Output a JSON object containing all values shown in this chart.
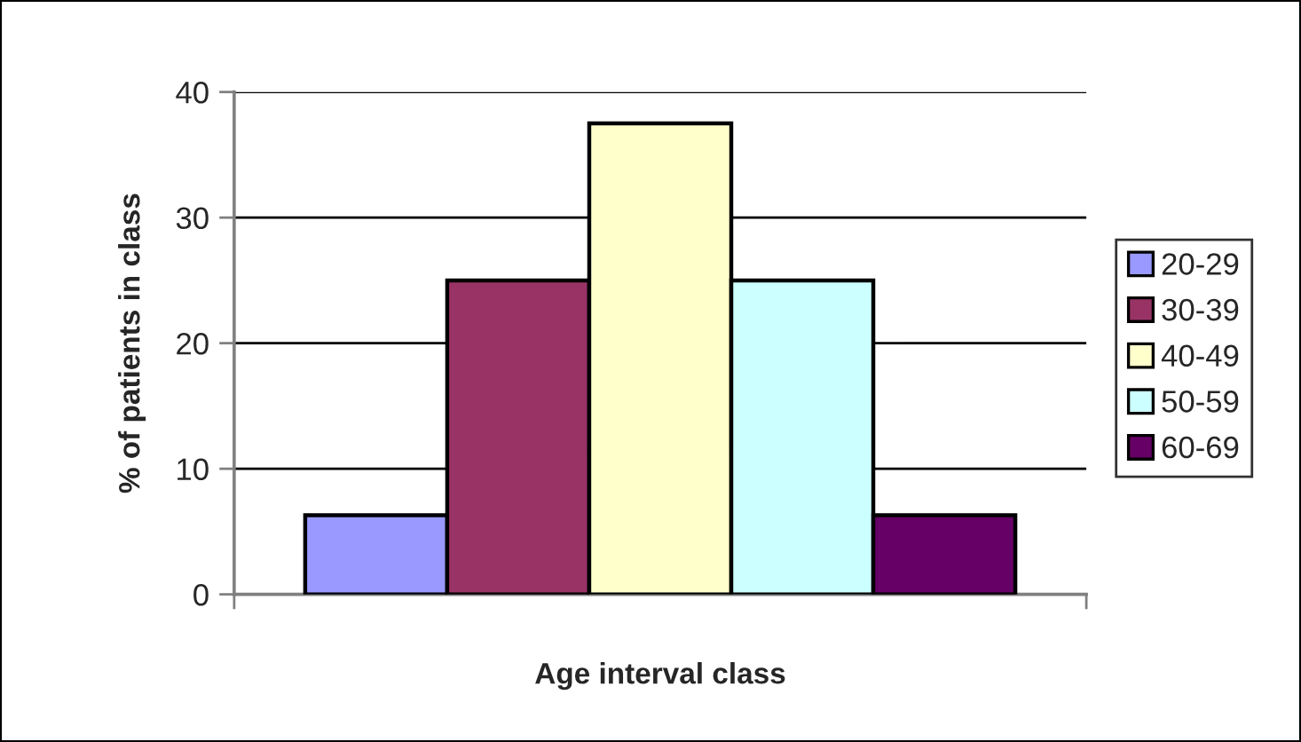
{
  "chart_data": {
    "type": "bar",
    "xlabel": "Age interval class",
    "ylabel": "% of patients in class",
    "categories": [
      null
    ],
    "series": [
      {
        "name": "20-29",
        "color": "#9999ff",
        "values": [
          6.3
        ]
      },
      {
        "name": "30-39",
        "color": "#993366",
        "values": [
          25
        ]
      },
      {
        "name": "40-49",
        "color": "#ffffcc",
        "values": [
          37.5
        ]
      },
      {
        "name": "50-59",
        "color": "#ccffff",
        "values": [
          25
        ]
      },
      {
        "name": "60-69",
        "color": "#660066",
        "values": [
          6.3
        ]
      }
    ],
    "ylim": [
      0,
      40
    ],
    "yticks": [
      0,
      10,
      20,
      30,
      40
    ],
    "grid": "y",
    "legend": "right"
  }
}
